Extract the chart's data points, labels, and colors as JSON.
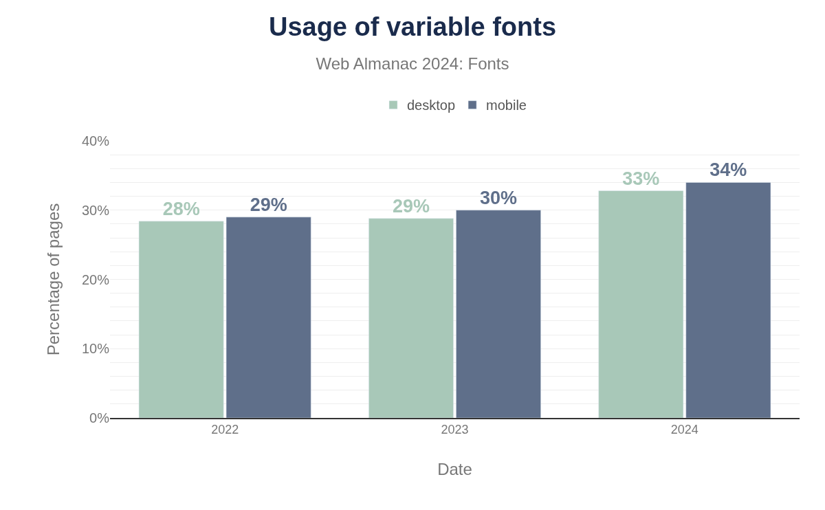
{
  "chart_data": {
    "type": "bar",
    "title": "Usage of variable fonts",
    "subtitle": "Web Almanac 2024: Fonts",
    "xlabel": "Date",
    "ylabel": "Percentage of pages",
    "categories": [
      "2022",
      "2023",
      "2024"
    ],
    "series": [
      {
        "name": "desktop",
        "color": "#a8c8b8",
        "values": [
          28.4,
          28.8,
          32.8
        ],
        "value_labels": [
          "28%",
          "29%",
          "33%"
        ]
      },
      {
        "name": "mobile",
        "color": "#5f6f8a",
        "values": [
          29.0,
          30.0,
          34.0
        ],
        "value_labels": [
          "29%",
          "30%",
          "34%"
        ]
      }
    ],
    "ylim": [
      0,
      40
    ],
    "yticks": [
      {
        "value": 0,
        "label": "0%"
      },
      {
        "value": 2,
        "label": null
      },
      {
        "value": 4,
        "label": null
      },
      {
        "value": 6,
        "label": null
      },
      {
        "value": 8,
        "label": null
      },
      {
        "value": 10,
        "label": "10%"
      },
      {
        "value": 12,
        "label": null
      },
      {
        "value": 14,
        "label": null
      },
      {
        "value": 16,
        "label": null
      },
      {
        "value": 18,
        "label": null
      },
      {
        "value": 20,
        "label": "20%"
      },
      {
        "value": 22,
        "label": null
      },
      {
        "value": 24,
        "label": null
      },
      {
        "value": 26,
        "label": null
      },
      {
        "value": 28,
        "label": null
      },
      {
        "value": 30,
        "label": "30%"
      },
      {
        "value": 32,
        "label": null
      },
      {
        "value": 34,
        "label": null
      },
      {
        "value": 36,
        "label": null
      },
      {
        "value": 38,
        "label": null
      },
      {
        "value": 40,
        "label": "40%"
      }
    ],
    "grid": "y",
    "legend": "top"
  }
}
